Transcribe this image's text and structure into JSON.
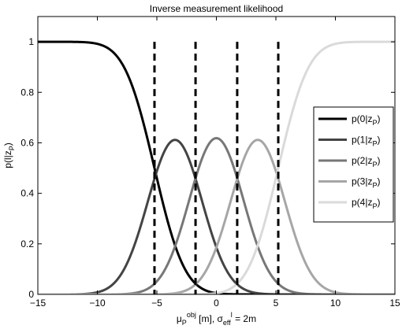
{
  "chart_data": {
    "type": "line",
    "title": "Inverse measurement likelihood",
    "xlabel": {
      "parts": [
        {
          "t": "μ",
          "s": "n"
        },
        {
          "t": "P",
          "s": "sub"
        },
        {
          "t": "obj",
          "s": "sup"
        },
        {
          "t": " [m], σ",
          "s": "n"
        },
        {
          "t": "eff",
          "s": "sub"
        },
        {
          "t": "l",
          "s": "sup"
        },
        {
          "t": " = 2m",
          "s": "n"
        }
      ]
    },
    "ylabel": {
      "parts": [
        {
          "t": "p(l|z",
          "s": "n"
        },
        {
          "t": "P",
          "s": "sub"
        },
        {
          "t": ")",
          "s": "n"
        }
      ]
    },
    "xlim": [
      -15,
      15
    ],
    "ylim": [
      0,
      1.1
    ],
    "x_ticks": [
      -15,
      -10,
      -5,
      0,
      5,
      10,
      15
    ],
    "x_tick_labels": [
      "−15",
      "−10",
      "−5",
      "0",
      "5",
      "10",
      "15"
    ],
    "y_ticks": [
      0,
      0.2,
      0.4,
      0.6,
      0.8,
      1
    ],
    "y_tick_labels": [
      "0",
      "0.2",
      "0.4",
      "0.6",
      "0.8",
      "1"
    ],
    "grid": false,
    "legend_position": "right",
    "model": {
      "sigma_eff": 2,
      "thresholds": [
        -5.2,
        -1.75,
        1.75,
        5.2
      ]
    },
    "vertical_lines": [
      -5.2,
      -1.75,
      1.75,
      5.2
    ],
    "series": [
      {
        "name": "p(0|z_P)",
        "legend": [
          {
            "t": "p(0|z",
            "s": "n"
          },
          {
            "t": "P",
            "s": "sub"
          },
          {
            "t": ")",
            "s": "n"
          }
        ],
        "color": "#000000",
        "key": "c0"
      },
      {
        "name": "p(1|z_P)",
        "legend": [
          {
            "t": "p(1|z",
            "s": "n"
          },
          {
            "t": "P",
            "s": "sub"
          },
          {
            "t": ")",
            "s": "n"
          }
        ],
        "color": "#444444",
        "key": "c1"
      },
      {
        "name": "p(2|z_P)",
        "legend": [
          {
            "t": "p(2|z",
            "s": "n"
          },
          {
            "t": "P",
            "s": "sub"
          },
          {
            "t": ")",
            "s": "n"
          }
        ],
        "color": "#777777",
        "key": "c2"
      },
      {
        "name": "p(3|z_P)",
        "legend": [
          {
            "t": "p(3|z",
            "s": "n"
          },
          {
            "t": "P",
            "s": "sub"
          },
          {
            "t": ")",
            "s": "n"
          }
        ],
        "color": "#a6a6a6",
        "key": "c3"
      },
      {
        "name": "p(4|z_P)",
        "legend": [
          {
            "t": "p(4|z",
            "s": "n"
          },
          {
            "t": "P",
            "s": "sub"
          },
          {
            "t": ")",
            "s": "n"
          }
        ],
        "color": "#dadada",
        "key": "c4"
      }
    ],
    "line_color_vertical": "#000000",
    "axes_color": "#000000"
  }
}
